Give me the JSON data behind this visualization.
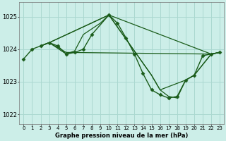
{
  "title": "Graphe pression niveau de la mer (hPa)",
  "background_color": "#cceee8",
  "grid_color": "#aad8d0",
  "line_color": "#1a5c1a",
  "marker_color": "#1a5c1a",
  "xlim": [
    -0.5,
    23.5
  ],
  "ylim": [
    1021.7,
    1025.45
  ],
  "yticks": [
    1022,
    1023,
    1024,
    1025
  ],
  "xticks": [
    0,
    1,
    2,
    3,
    4,
    5,
    6,
    7,
    8,
    9,
    10,
    11,
    12,
    13,
    14,
    15,
    16,
    17,
    18,
    19,
    20,
    21,
    22,
    23
  ],
  "series": [
    {
      "x": [
        0,
        1,
        2,
        3,
        4,
        5,
        6,
        7,
        8,
        10,
        11,
        12,
        13,
        14,
        15,
        16,
        17,
        18,
        19,
        20,
        21,
        22,
        23
      ],
      "y": [
        1023.7,
        1024.0,
        1024.1,
        1024.2,
        1024.1,
        1023.85,
        1023.9,
        1024.0,
        1024.45,
        1025.05,
        1024.8,
        1024.35,
        1023.85,
        1023.25,
        1022.75,
        1022.6,
        1022.5,
        1022.55,
        1023.05,
        1023.2,
        1023.8,
        1023.85,
        1023.9
      ],
      "marker": true,
      "lw": 1.0
    },
    {
      "x": [
        2,
        3,
        10,
        22,
        23
      ],
      "y": [
        1024.1,
        1024.2,
        1025.05,
        1023.85,
        1023.9
      ],
      "marker": false,
      "lw": 0.9
    },
    {
      "x": [
        2,
        3,
        10,
        15,
        16,
        17,
        18,
        19,
        20,
        22,
        23
      ],
      "y": [
        1024.1,
        1024.2,
        1025.05,
        1023.2,
        1022.75,
        1022.55,
        1022.5,
        1023.05,
        1023.2,
        1023.85,
        1023.9
      ],
      "marker": false,
      "lw": 0.9
    },
    {
      "x": [
        2,
        3,
        4,
        5,
        22,
        23
      ],
      "y": [
        1024.1,
        1024.2,
        1024.05,
        1023.9,
        1023.85,
        1023.9
      ],
      "marker": false,
      "lw": 0.9
    },
    {
      "x": [
        2,
        3,
        5,
        6,
        7,
        9,
        10,
        15,
        16,
        19,
        20,
        22,
        23
      ],
      "y": [
        1024.1,
        1024.2,
        1023.85,
        1023.95,
        1024.45,
        1024.8,
        1025.05,
        1023.2,
        1022.75,
        1023.05,
        1023.2,
        1023.85,
        1023.9
      ],
      "marker": false,
      "lw": 0.9
    }
  ]
}
